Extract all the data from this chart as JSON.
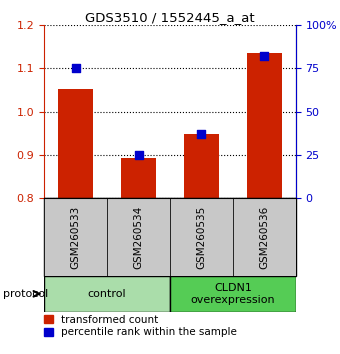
{
  "title": "GDS3510 / 1552445_a_at",
  "samples": [
    "GSM260533",
    "GSM260534",
    "GSM260535",
    "GSM260536"
  ],
  "red_values": [
    1.052,
    0.893,
    0.948,
    1.136
  ],
  "blue_values": [
    75.0,
    25.0,
    37.0,
    82.0
  ],
  "ylim_left": [
    0.8,
    1.2
  ],
  "ylim_right": [
    0,
    100
  ],
  "yticks_left": [
    0.8,
    0.9,
    1.0,
    1.1,
    1.2
  ],
  "yticks_right": [
    0,
    25,
    50,
    75,
    100
  ],
  "ytick_labels_right": [
    "0",
    "25",
    "50",
    "75",
    "100%"
  ],
  "red_color": "#CC2200",
  "blue_color": "#0000CC",
  "bar_width": 0.55,
  "dot_size": 30,
  "protocol_groups": [
    {
      "label": "control",
      "samples": [
        0,
        1
      ],
      "color": "#AADDAA"
    },
    {
      "label": "CLDN1\noverexpression",
      "samples": [
        2,
        3
      ],
      "color": "#55CC55"
    }
  ],
  "protocol_label": "protocol",
  "legend_red": "transformed count",
  "legend_blue": "percentile rank within the sample",
  "sample_box_color": "#C8C8C8",
  "baseline": 0.8
}
